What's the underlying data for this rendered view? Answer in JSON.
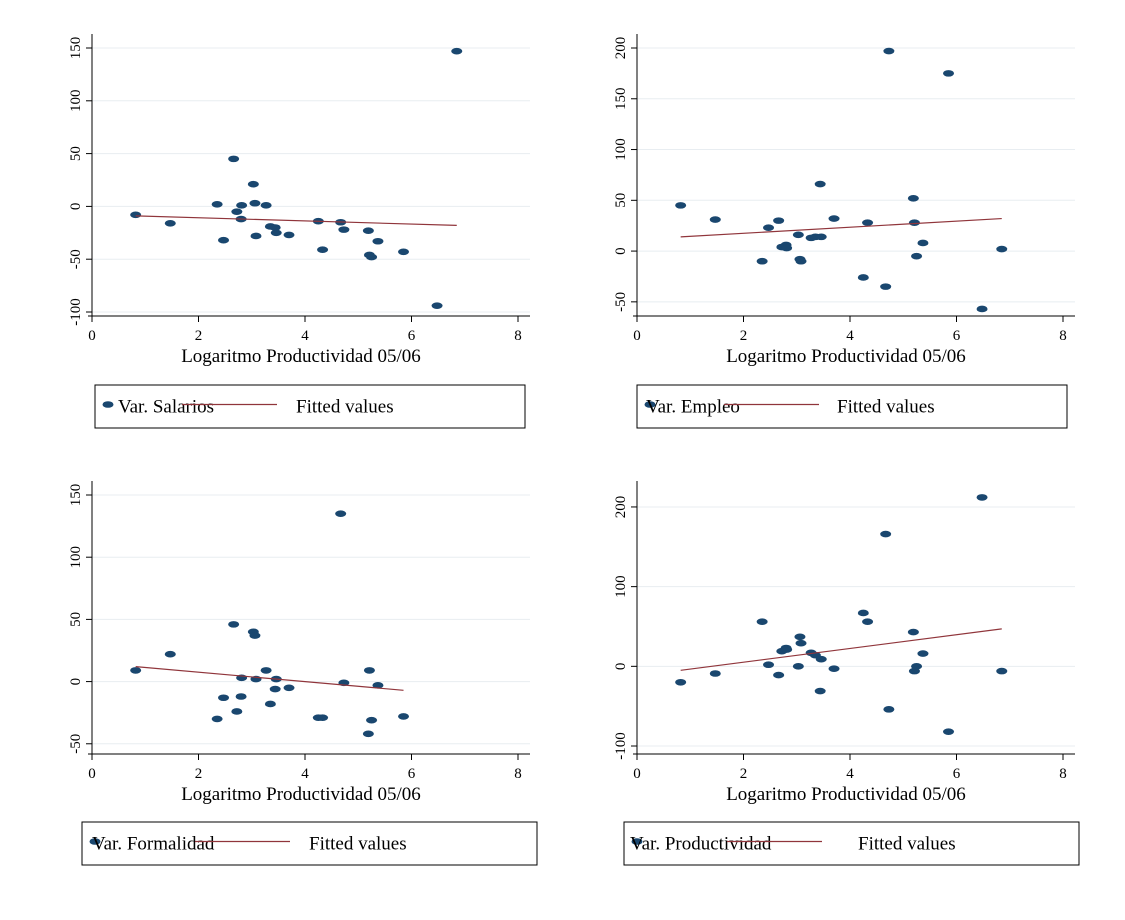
{
  "colors": {
    "marker": "#1a476f",
    "fit_line": "#90353b",
    "grid": "#e8edf1",
    "axis": "#000000"
  },
  "chart_data": [
    {
      "type": "scatter",
      "xlabel": "Logaritmo Productividad 05/06",
      "ylabel": "",
      "xlim": [
        0,
        8
      ],
      "ylim": [
        -100,
        150
      ],
      "x_ticks": [
        0,
        2,
        4,
        6,
        8
      ],
      "y_ticks": [
        -100,
        -50,
        0,
        50,
        100,
        150
      ],
      "x_tick_labels": [
        "0",
        "2",
        "4",
        "6",
        "8"
      ],
      "y_tick_labels": [
        "-100",
        "-50",
        "0",
        "50",
        "100",
        "150"
      ],
      "grid": true,
      "legend_position": "bottom",
      "series": [
        {
          "name": "Var. Salarios",
          "kind": "scatter",
          "points": [
            [
              0.82,
              -8
            ],
            [
              1.47,
              -16
            ],
            [
              2.35,
              2
            ],
            [
              2.47,
              -32
            ],
            [
              2.66,
              45
            ],
            [
              2.72,
              -5
            ],
            [
              2.8,
              -12
            ],
            [
              2.81,
              1
            ],
            [
              3.03,
              21
            ],
            [
              3.06,
              3
            ],
            [
              3.08,
              -28
            ],
            [
              3.27,
              1
            ],
            [
              3.35,
              -19
            ],
            [
              3.44,
              -20
            ],
            [
              3.46,
              -25
            ],
            [
              3.7,
              -27
            ],
            [
              4.25,
              -14
            ],
            [
              4.33,
              -41
            ],
            [
              4.67,
              -15
            ],
            [
              4.73,
              -22
            ],
            [
              5.19,
              -23
            ],
            [
              5.21,
              -46
            ],
            [
              5.25,
              -48
            ],
            [
              5.37,
              -33
            ],
            [
              5.85,
              -43
            ],
            [
              6.48,
              -94
            ],
            [
              6.85,
              147
            ]
          ]
        },
        {
          "name": "Fitted values",
          "kind": "line",
          "points": [
            [
              0.82,
              -9
            ],
            [
              6.85,
              -18
            ]
          ]
        }
      ]
    },
    {
      "type": "scatter",
      "xlabel": "Logaritmo Productividad 05/06",
      "ylabel": "",
      "xlim": [
        0,
        8
      ],
      "ylim": [
        -60,
        200
      ],
      "x_ticks": [
        0,
        2,
        4,
        6,
        8
      ],
      "y_ticks": [
        -50,
        0,
        50,
        100,
        150,
        200
      ],
      "x_tick_labels": [
        "0",
        "2",
        "4",
        "6",
        "8"
      ],
      "y_tick_labels": [
        "-50",
        "0",
        "50",
        "100",
        "150",
        "200"
      ],
      "grid": true,
      "legend_position": "bottom",
      "series": [
        {
          "name": "Var. Empleo",
          "kind": "scatter",
          "points": [
            [
              0.82,
              45
            ],
            [
              1.47,
              31
            ],
            [
              2.35,
              -10
            ],
            [
              2.47,
              23
            ],
            [
              2.66,
              30
            ],
            [
              2.72,
              4
            ],
            [
              2.8,
              6
            ],
            [
              2.81,
              3
            ],
            [
              3.03,
              16
            ],
            [
              3.06,
              -8
            ],
            [
              3.08,
              -10
            ],
            [
              3.27,
              13
            ],
            [
              3.35,
              14
            ],
            [
              3.44,
              66
            ],
            [
              3.46,
              14
            ],
            [
              3.7,
              32
            ],
            [
              4.25,
              -26
            ],
            [
              4.33,
              28
            ],
            [
              4.67,
              -35
            ],
            [
              4.73,
              197
            ],
            [
              5.19,
              52
            ],
            [
              5.21,
              28
            ],
            [
              5.25,
              -5
            ],
            [
              5.37,
              8
            ],
            [
              5.85,
              175
            ],
            [
              6.48,
              -57
            ],
            [
              6.85,
              2
            ]
          ]
        },
        {
          "name": "Fitted values",
          "kind": "line",
          "points": [
            [
              0.82,
              14
            ],
            [
              6.85,
              32
            ]
          ]
        }
      ]
    },
    {
      "type": "scatter",
      "xlabel": "Logaritmo Productividad 05/06",
      "ylabel": "",
      "xlim": [
        0,
        8
      ],
      "ylim": [
        -55,
        150
      ],
      "x_ticks": [
        0,
        2,
        4,
        6,
        8
      ],
      "y_ticks": [
        -50,
        0,
        50,
        100,
        150
      ],
      "x_tick_labels": [
        "0",
        "2",
        "4",
        "6",
        "8"
      ],
      "y_tick_labels": [
        "-50",
        "0",
        "50",
        "100",
        "150"
      ],
      "grid": true,
      "legend_position": "bottom",
      "series": [
        {
          "name": "Var. Formalidad",
          "kind": "scatter",
          "points": [
            [
              0.82,
              9
            ],
            [
              1.47,
              22
            ],
            [
              2.35,
              -30
            ],
            [
              2.47,
              -13
            ],
            [
              2.66,
              46
            ],
            [
              2.72,
              -24
            ],
            [
              2.8,
              -12
            ],
            [
              2.81,
              3
            ],
            [
              3.03,
              40
            ],
            [
              3.06,
              37
            ],
            [
              3.08,
              2
            ],
            [
              3.27,
              9
            ],
            [
              3.35,
              -18
            ],
            [
              3.44,
              -6
            ],
            [
              3.46,
              2
            ],
            [
              3.7,
              -5
            ],
            [
              4.25,
              -29
            ],
            [
              4.33,
              -29
            ],
            [
              4.67,
              135
            ],
            [
              4.73,
              -1
            ],
            [
              5.19,
              -42
            ],
            [
              5.21,
              9
            ],
            [
              5.25,
              -31
            ],
            [
              5.37,
              -3
            ],
            [
              5.85,
              -28
            ]
          ]
        },
        {
          "name": "Fitted values",
          "kind": "line",
          "points": [
            [
              0.82,
              12
            ],
            [
              5.85,
              -7
            ]
          ]
        }
      ]
    },
    {
      "type": "scatter",
      "xlabel": "Logaritmo Productividad 05/06",
      "ylabel": "",
      "xlim": [
        0,
        8
      ],
      "ylim": [
        -105,
        215
      ],
      "x_ticks": [
        0,
        2,
        4,
        6,
        8
      ],
      "y_ticks": [
        -100,
        0,
        100,
        200
      ],
      "x_tick_labels": [
        "0",
        "2",
        "4",
        "6",
        "8"
      ],
      "y_tick_labels": [
        "-100",
        "0",
        "100",
        "200"
      ],
      "grid": true,
      "legend_position": "bottom",
      "series": [
        {
          "name": "Var. Productividad",
          "kind": "scatter",
          "points": [
            [
              0.82,
              -20
            ],
            [
              1.47,
              -9
            ],
            [
              2.35,
              56
            ],
            [
              2.47,
              2
            ],
            [
              2.66,
              -11
            ],
            [
              2.72,
              19
            ],
            [
              2.8,
              23
            ],
            [
              2.81,
              21
            ],
            [
              3.03,
              0
            ],
            [
              3.06,
              37
            ],
            [
              3.08,
              29
            ],
            [
              3.27,
              17
            ],
            [
              3.35,
              14
            ],
            [
              3.44,
              -31
            ],
            [
              3.46,
              9
            ],
            [
              3.7,
              -3
            ],
            [
              4.25,
              67
            ],
            [
              4.33,
              56
            ],
            [
              4.67,
              166
            ],
            [
              4.73,
              -54
            ],
            [
              5.19,
              43
            ],
            [
              5.21,
              -6
            ],
            [
              5.25,
              0
            ],
            [
              5.37,
              16
            ],
            [
              5.85,
              -82
            ],
            [
              6.48,
              212
            ],
            [
              6.85,
              -6
            ]
          ]
        },
        {
          "name": "Fitted values",
          "kind": "line",
          "points": [
            [
              0.82,
              -5
            ],
            [
              6.85,
              47
            ]
          ]
        }
      ]
    }
  ]
}
